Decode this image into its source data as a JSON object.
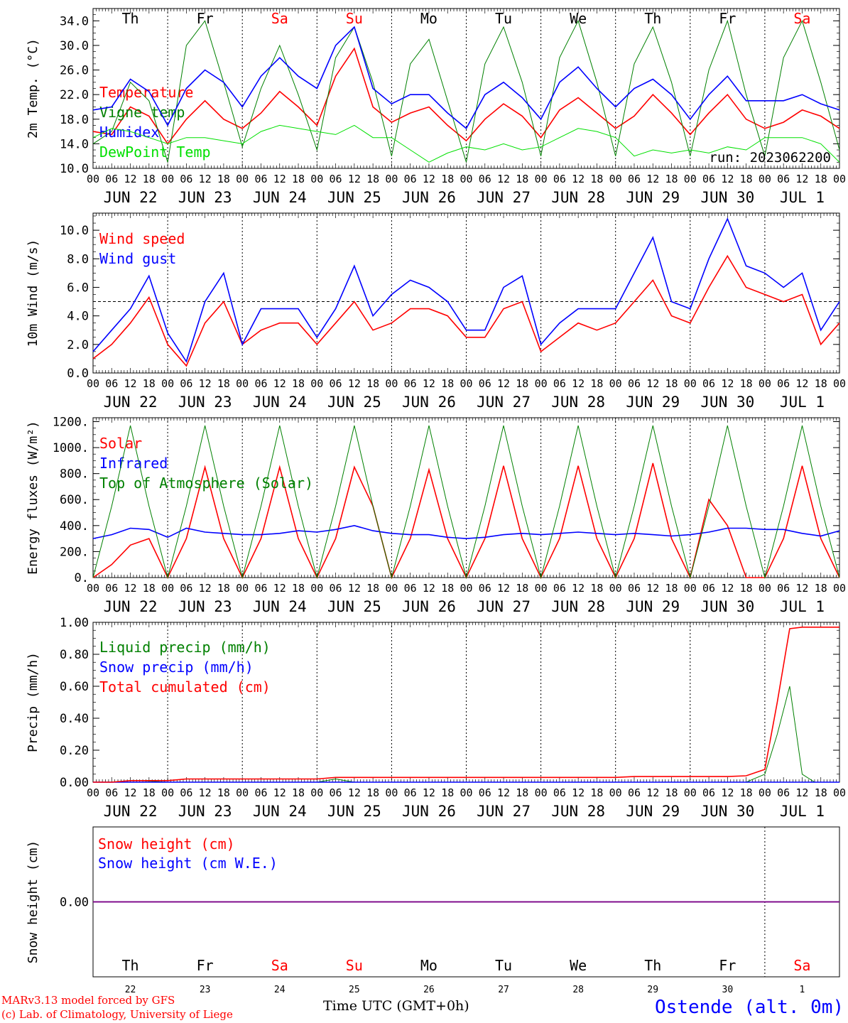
{
  "run_label": "run: 2023062200",
  "credits": {
    "line1": "MARv3.13 model forced by GFS",
    "line2": "(c) Lab. of Climatology, University of Liege"
  },
  "x_axis": {
    "title": "Time UTC (GMT+0h)",
    "hour_ticks": [
      "00",
      "06",
      "12",
      "18"
    ],
    "end_tick": "00",
    "day_labels": [
      "JUN 22",
      "JUN 23",
      "JUN 24",
      "JUN 25",
      "JUN 26",
      "JUN 27",
      "JUN 28",
      "JUN 29",
      "JUN 30",
      "JUL  1"
    ],
    "weekday_labels": [
      "Th",
      "Fr",
      "Sa",
      "Su",
      "Mo",
      "Tu",
      "We",
      "Th",
      "Fr",
      "Sa"
    ],
    "weekend_flags": [
      false,
      false,
      true,
      true,
      false,
      false,
      false,
      false,
      false,
      true
    ],
    "day_numbers": [
      "22",
      "23",
      "24",
      "25",
      "26",
      "27",
      "28",
      "29",
      "30",
      "1"
    ]
  },
  "station": "Ostende (alt. 0m)",
  "colors": {
    "red": "#ff0000",
    "green": "#008000",
    "blue": "#0000ff",
    "lightgreen": "#00e000",
    "purple": "#800080"
  },
  "chart_data": [
    {
      "type": "line",
      "ylabel": "2m Temp. (°C)",
      "ylim": [
        10,
        36
      ],
      "yticks": [
        10.0,
        14.0,
        18.0,
        22.0,
        26.0,
        30.0,
        34.0
      ],
      "ytick_labels": [
        "10.0",
        "14.0",
        "18.0",
        "22.0",
        "26.0",
        "30.0",
        "34.0"
      ],
      "x_hours": [
        0,
        6,
        12,
        18,
        24,
        30,
        36,
        42,
        48,
        54,
        60,
        66,
        72,
        78,
        84,
        90,
        96,
        102,
        108,
        114,
        120,
        126,
        132,
        138,
        144,
        150,
        156,
        162,
        168,
        174,
        180,
        186,
        192,
        198,
        204,
        210,
        216,
        222,
        228,
        234,
        240
      ],
      "series": [
        {
          "name": "Temperature",
          "color": "red",
          "values": [
            16,
            15.5,
            20,
            18.5,
            14,
            18,
            21,
            18,
            16.5,
            19,
            22.5,
            20,
            17,
            25,
            29.5,
            20,
            17.5,
            19,
            20,
            17,
            14.5,
            18,
            20.5,
            18.5,
            15,
            19.5,
            21.5,
            19,
            16.5,
            18.5,
            22,
            19,
            15.5,
            19,
            22,
            18,
            16.5,
            17.5,
            19.5,
            18.5,
            16.5
          ]
        },
        {
          "name": "Vigne temp",
          "color": "green",
          "values": [
            14,
            16,
            24,
            21,
            11,
            30,
            34,
            24,
            13.5,
            23,
            30,
            22,
            13,
            28,
            33,
            24,
            12,
            27,
            31,
            21,
            11,
            27,
            33,
            24,
            12,
            28,
            34,
            24,
            12,
            27,
            33,
            24,
            12,
            26,
            34,
            22,
            12,
            28,
            34,
            24,
            13
          ]
        },
        {
          "name": "Humidex",
          "color": "blue",
          "values": [
            19.5,
            20,
            24.5,
            22.5,
            17,
            23,
            26,
            24,
            20,
            25,
            28,
            25,
            23,
            30,
            33,
            23,
            20.5,
            22,
            22,
            19,
            16.5,
            22,
            24,
            21.5,
            18,
            24,
            26.5,
            23,
            20,
            23,
            24.5,
            22,
            18,
            22,
            25,
            21,
            21,
            21,
            22,
            20.5,
            19.5
          ]
        },
        {
          "name": "DewPoint Temp",
          "color": "lightgreen",
          "values": [
            15,
            16.5,
            16,
            15,
            14,
            15,
            15,
            14.5,
            14,
            16,
            17,
            16.5,
            16,
            15.5,
            17,
            15,
            15,
            13,
            11,
            12.5,
            13.5,
            13,
            14,
            13,
            13.5,
            15,
            16.5,
            16,
            15,
            12,
            13,
            12.5,
            13,
            12.5,
            13.5,
            13,
            15,
            15,
            15,
            14,
            11
          ]
        }
      ]
    },
    {
      "type": "line",
      "ylabel": "10m Wind (m/s)",
      "ylim": [
        0,
        11.2
      ],
      "yticks": [
        0,
        2,
        4,
        6,
        8,
        10
      ],
      "ytick_labels": [
        "0.0",
        "2.0",
        "4.0",
        "6.0",
        "8.0",
        "10.0"
      ],
      "reference_line": 5,
      "x_hours": [
        0,
        6,
        12,
        18,
        24,
        30,
        36,
        42,
        48,
        54,
        60,
        66,
        72,
        78,
        84,
        90,
        96,
        102,
        108,
        114,
        120,
        126,
        132,
        138,
        144,
        150,
        156,
        162,
        168,
        174,
        180,
        186,
        192,
        198,
        204,
        210,
        216,
        222,
        228,
        234,
        240
      ],
      "series": [
        {
          "name": "Wind speed",
          "color": "red",
          "values": [
            1,
            2,
            3.5,
            5.3,
            2,
            0.5,
            3.5,
            5,
            2,
            3,
            3.5,
            3.5,
            2,
            3.5,
            5,
            3,
            3.5,
            4.5,
            4.5,
            4,
            2.5,
            2.5,
            4.5,
            5,
            1.5,
            2.5,
            3.5,
            3,
            3.5,
            5,
            6.5,
            4,
            3.5,
            6,
            8.2,
            6,
            5.5,
            5,
            5.5,
            2,
            3.5
          ]
        },
        {
          "name": "Wind gust",
          "color": "blue",
          "values": [
            1.5,
            3,
            4.5,
            6.8,
            2.8,
            0.8,
            5,
            7,
            2,
            4.5,
            4.5,
            4.5,
            2.5,
            4.5,
            7.5,
            4,
            5.5,
            6.5,
            6,
            5,
            3,
            3,
            6,
            6.8,
            2,
            3.5,
            4.5,
            4.5,
            4.5,
            7,
            9.5,
            5,
            4.5,
            8,
            10.8,
            7.5,
            7,
            6,
            7,
            3,
            5
          ]
        }
      ]
    },
    {
      "type": "line",
      "ylabel": "Energy fluxes (W/m²)",
      "ylim": [
        0,
        1230
      ],
      "yticks": [
        0,
        200,
        400,
        600,
        800,
        1000,
        1200
      ],
      "ytick_labels": [
        "0.",
        "200.",
        "400.",
        "600.",
        "800.",
        "1000.",
        "1200."
      ],
      "x_hours": [
        0,
        6,
        12,
        18,
        24,
        30,
        36,
        42,
        48,
        54,
        60,
        66,
        72,
        78,
        84,
        90,
        96,
        102,
        108,
        114,
        120,
        126,
        132,
        138,
        144,
        150,
        156,
        162,
        168,
        174,
        180,
        186,
        192,
        198,
        204,
        210,
        216,
        222,
        228,
        234,
        240
      ],
      "series": [
        {
          "name": "Solar",
          "color": "red",
          "values": [
            0,
            100,
            250,
            300,
            0,
            300,
            850,
            300,
            0,
            300,
            850,
            300,
            0,
            300,
            850,
            550,
            0,
            300,
            830,
            300,
            0,
            300,
            860,
            300,
            0,
            300,
            860,
            300,
            0,
            300,
            880,
            300,
            0,
            600,
            400,
            0,
            0,
            300,
            860,
            300,
            0
          ]
        },
        {
          "name": "Infrared",
          "color": "blue",
          "values": [
            300,
            330,
            380,
            370,
            310,
            380,
            350,
            340,
            330,
            330,
            340,
            360,
            350,
            370,
            400,
            360,
            340,
            330,
            330,
            310,
            300,
            310,
            330,
            340,
            330,
            340,
            350,
            340,
            330,
            340,
            330,
            320,
            330,
            350,
            380,
            380,
            370,
            370,
            340,
            320,
            360
          ]
        },
        {
          "name": "Top of Atmosphere (Solar)",
          "color": "green",
          "values": [
            0,
            550,
            1170,
            550,
            0,
            550,
            1170,
            550,
            0,
            550,
            1170,
            550,
            0,
            550,
            1170,
            550,
            0,
            550,
            1170,
            550,
            0,
            550,
            1170,
            550,
            0,
            550,
            1170,
            550,
            0,
            550,
            1170,
            550,
            0,
            550,
            1170,
            550,
            0,
            550,
            1170,
            550,
            0
          ]
        }
      ]
    },
    {
      "type": "line",
      "ylabel": "Precip (mm/h)",
      "ylim": [
        0,
        1.0
      ],
      "yticks": [
        0,
        0.2,
        0.4,
        0.6,
        0.8,
        1.0
      ],
      "ytick_labels": [
        "0.00",
        "0.20",
        "0.40",
        "0.60",
        "0.80",
        "1.00"
      ],
      "x_hours": [
        0,
        6,
        12,
        15,
        24,
        30,
        36,
        48,
        72,
        78,
        84,
        96,
        120,
        144,
        168,
        174,
        192,
        204,
        210,
        216,
        220,
        224,
        228,
        232,
        240
      ],
      "series": [
        {
          "name": "Liquid precip (mm/h)",
          "color": "green",
          "values": [
            0,
            0,
            0.01,
            0.01,
            0,
            0,
            0,
            0,
            0,
            0.02,
            0,
            0,
            0,
            0,
            0,
            0,
            0,
            0,
            0,
            0.05,
            0.3,
            0.6,
            0.05,
            0,
            0
          ]
        },
        {
          "name": "Snow precip (mm/h)",
          "color": "blue",
          "values": [
            0,
            0,
            0,
            0,
            0,
            0,
            0,
            0,
            0,
            0,
            0,
            0,
            0,
            0,
            0,
            0,
            0,
            0,
            0,
            0,
            0,
            0,
            0,
            0,
            0
          ]
        },
        {
          "name": "Total cumulated (cm)",
          "color": "red",
          "values": [
            0,
            0,
            0.01,
            0.01,
            0.01,
            0.02,
            0.02,
            0.02,
            0.02,
            0.03,
            0.03,
            0.03,
            0.03,
            0.03,
            0.03,
            0.035,
            0.035,
            0.035,
            0.04,
            0.08,
            0.5,
            0.96,
            0.97,
            0.97,
            0.97
          ]
        }
      ]
    },
    {
      "type": "line",
      "ylabel": "Snow height (cm)",
      "ylim": [
        -1,
        1
      ],
      "yticks": [
        0
      ],
      "ytick_labels": [
        "0.00"
      ],
      "x_hours": [
        0,
        240
      ],
      "series": [
        {
          "name": "Snow height (cm)",
          "color": "red",
          "values": [
            0,
            0
          ]
        },
        {
          "name": "Snow height (cm W.E.)",
          "color": "blue",
          "values": [
            0,
            0
          ]
        }
      ]
    }
  ]
}
